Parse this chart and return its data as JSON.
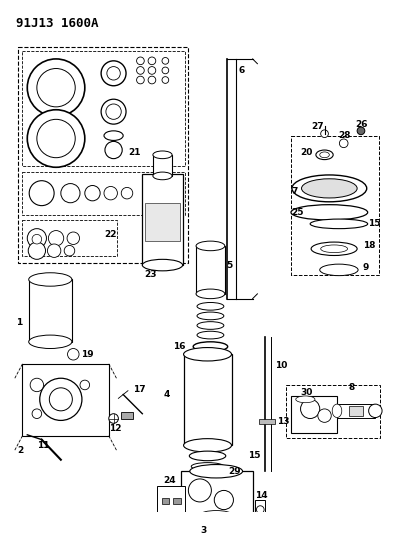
{
  "title": "91J13 1600A",
  "bg_color": "#ffffff",
  "line_color": "#000000",
  "title_fontsize": 9,
  "label_fontsize": 6.5,
  "figsize": [
    3.94,
    5.33
  ],
  "dpi": 100
}
